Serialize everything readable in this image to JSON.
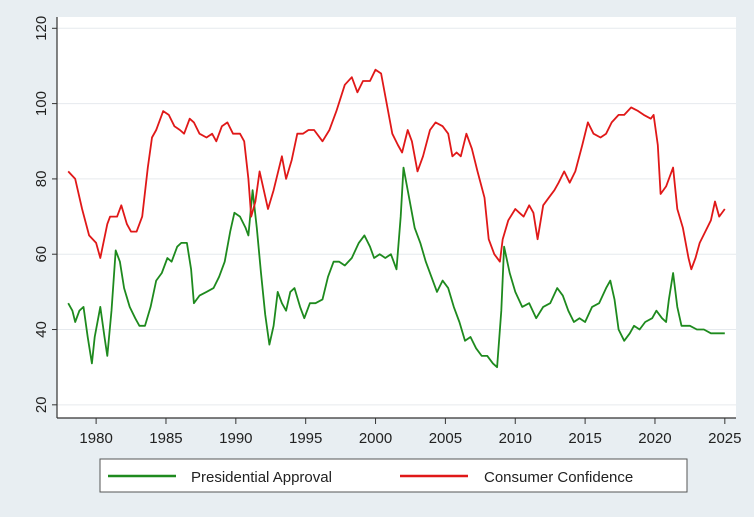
{
  "chart_data": {
    "type": "line",
    "title": "",
    "xlabel": "",
    "ylabel": "",
    "xlim": [
      1977.2,
      2025.8
    ],
    "ylim": [
      16.5,
      123
    ],
    "x_ticks": [
      1980,
      1985,
      1990,
      1995,
      2000,
      2005,
      2010,
      2015,
      2020,
      2025
    ],
    "y_ticks": [
      20,
      40,
      60,
      80,
      100,
      120
    ],
    "grid": "horizontal",
    "legend_position": "bottom",
    "series": [
      {
        "name": "Presidential Approval",
        "color": "#1e8a1e",
        "x": [
          1978.0,
          1978.3,
          1978.5,
          1978.8,
          1979.1,
          1979.4,
          1979.7,
          1979.9,
          1980.3,
          1980.6,
          1980.8,
          1981.1,
          1981.4,
          1981.7,
          1982.0,
          1982.4,
          1982.8,
          1983.1,
          1983.5,
          1983.9,
          1984.3,
          1984.7,
          1985.1,
          1985.4,
          1985.8,
          1986.1,
          1986.5,
          1986.8,
          1987.0,
          1987.4,
          1987.9,
          1988.4,
          1988.8,
          1989.2,
          1989.6,
          1989.9,
          1990.3,
          1990.7,
          1990.9,
          1991.2,
          1991.5,
          1991.8,
          1992.1,
          1992.4,
          1992.7,
          1993.0,
          1993.3,
          1993.6,
          1993.9,
          1994.2,
          1994.6,
          1994.9,
          1995.3,
          1995.7,
          1996.2,
          1996.6,
          1997.0,
          1997.4,
          1997.8,
          1998.3,
          1998.8,
          1999.2,
          1999.6,
          1999.9,
          2000.3,
          2000.7,
          2001.1,
          2001.5,
          2001.8,
          2002.0,
          2002.4,
          2002.8,
          2003.2,
          2003.6,
          2004.0,
          2004.4,
          2004.8,
          2005.2,
          2005.6,
          2006.0,
          2006.4,
          2006.8,
          2007.2,
          2007.6,
          2008.0,
          2008.4,
          2008.7,
          2009.0,
          2009.2,
          2009.6,
          2010.0,
          2010.5,
          2011.0,
          2011.5,
          2012.0,
          2012.5,
          2013.0,
          2013.4,
          2013.8,
          2014.2,
          2014.6,
          2015.0,
          2015.5,
          2016.0,
          2016.5,
          2016.8,
          2017.1,
          2017.4,
          2017.8,
          2018.2,
          2018.5,
          2018.9,
          2019.3,
          2019.8,
          2020.1,
          2020.5,
          2020.8,
          2021.0,
          2021.3,
          2021.6,
          2021.9,
          2022.5,
          2023.0,
          2023.5,
          2024.0,
          2024.5,
          2025.0
        ],
        "values": [
          47,
          45,
          42,
          45,
          46,
          38,
          31,
          38,
          46,
          38,
          33,
          45,
          61,
          58,
          51,
          46,
          43,
          41,
          41,
          46,
          53,
          55,
          59,
          58,
          62,
          63,
          63,
          56,
          47,
          49,
          50,
          51,
          54,
          58,
          66,
          71,
          70,
          67,
          65,
          77,
          67,
          55,
          44,
          36,
          41,
          50,
          47,
          45,
          50,
          51,
          46,
          43,
          47,
          47,
          48,
          54,
          58,
          58,
          57,
          59,
          63,
          65,
          62,
          59,
          60,
          59,
          60,
          56,
          70,
          83,
          75,
          67,
          63,
          58,
          54,
          50,
          53,
          51,
          46,
          42,
          37,
          38,
          35,
          33,
          33,
          31,
          30,
          45,
          62,
          55,
          50,
          46,
          47,
          43,
          46,
          47,
          51,
          49,
          45,
          42,
          43,
          42,
          46,
          47,
          51,
          53,
          48,
          40,
          37,
          39,
          41,
          40,
          42,
          43,
          45,
          43,
          42,
          48,
          55,
          46,
          41,
          41,
          40,
          40,
          39,
          39,
          39
        ]
      },
      {
        "name": "Consumer Confidence",
        "color": "#e01818",
        "x": [
          1978.0,
          1978.5,
          1979.0,
          1979.5,
          1980.0,
          1980.3,
          1980.8,
          1981.0,
          1981.5,
          1981.8,
          1982.2,
          1982.5,
          1982.9,
          1983.3,
          1983.7,
          1984.0,
          1984.3,
          1984.8,
          1985.2,
          1985.6,
          1986.0,
          1986.3,
          1986.7,
          1987.0,
          1987.4,
          1987.9,
          1988.3,
          1988.6,
          1989.0,
          1989.4,
          1989.8,
          1990.3,
          1990.6,
          1990.9,
          1991.1,
          1991.4,
          1991.7,
          1992.0,
          1992.3,
          1992.7,
          1993.3,
          1993.6,
          1994.0,
          1994.4,
          1994.8,
          1995.2,
          1995.6,
          1996.2,
          1996.7,
          1997.2,
          1997.8,
          1998.3,
          1998.7,
          1999.1,
          1999.6,
          2000.0,
          2000.4,
          2000.8,
          2001.2,
          2001.6,
          2001.9,
          2002.3,
          2002.6,
          2003.0,
          2003.4,
          2003.9,
          2004.3,
          2004.8,
          2005.2,
          2005.5,
          2005.8,
          2006.1,
          2006.5,
          2006.9,
          2007.3,
          2007.8,
          2008.1,
          2008.5,
          2008.9,
          2009.1,
          2009.5,
          2010.0,
          2010.3,
          2010.6,
          2011.0,
          2011.3,
          2011.6,
          2012.0,
          2012.4,
          2012.8,
          2013.1,
          2013.5,
          2013.9,
          2014.3,
          2014.8,
          2015.2,
          2015.6,
          2016.1,
          2016.5,
          2016.9,
          2017.4,
          2017.8,
          2018.3,
          2018.8,
          2019.2,
          2019.7,
          2019.9,
          2020.2,
          2020.4,
          2020.8,
          2021.3,
          2021.6,
          2022.0,
          2022.4,
          2022.6,
          2022.9,
          2023.2,
          2023.6,
          2024.0,
          2024.3,
          2024.6,
          2025.0
        ],
        "values": [
          82,
          80,
          72,
          65,
          63,
          59,
          68,
          70,
          70,
          73,
          68,
          66,
          66,
          70,
          83,
          91,
          93,
          98,
          97,
          94,
          93,
          92,
          96,
          95,
          92,
          91,
          92,
          90,
          94,
          95,
          92,
          92,
          90,
          80,
          70,
          74,
          82,
          77,
          72,
          77,
          86,
          80,
          85,
          92,
          92,
          93,
          93,
          90,
          93,
          98,
          105,
          107,
          103,
          106,
          106,
          109,
          108,
          100,
          92,
          89,
          87,
          93,
          90,
          82,
          86,
          93,
          95,
          94,
          92,
          86,
          87,
          86,
          92,
          88,
          82,
          75,
          64,
          60,
          58,
          64,
          69,
          72,
          71,
          70,
          73,
          71,
          64,
          73,
          75,
          77,
          79,
          82,
          79,
          82,
          89,
          95,
          92,
          91,
          92,
          95,
          97,
          97,
          99,
          98,
          97,
          96,
          97,
          89,
          76,
          78,
          83,
          72,
          67,
          59,
          56,
          59,
          63,
          66,
          69,
          74,
          70,
          72
        ]
      }
    ]
  }
}
